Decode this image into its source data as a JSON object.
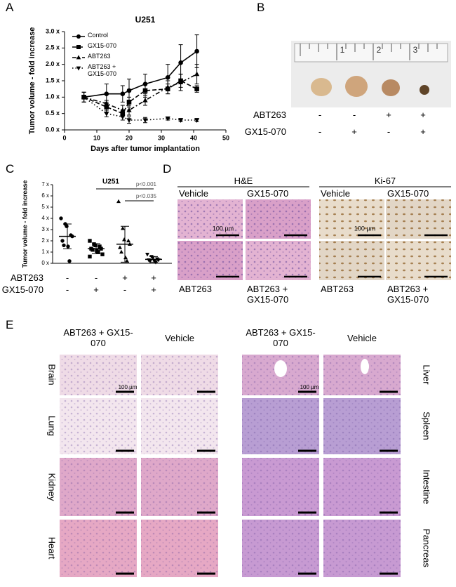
{
  "chart_data": [
    {
      "type": "line",
      "panel": "A",
      "title": "U251",
      "x_label": "Days after tumor implantation",
      "y_label": "Tumor volume - fold increase",
      "x": [
        6,
        13,
        18,
        20,
        25,
        32,
        36,
        41
      ],
      "xlim": [
        0,
        50
      ],
      "xticks": [
        0,
        10,
        20,
        30,
        40,
        50
      ],
      "ylim": [
        0,
        3
      ],
      "yticks": [
        {
          "value": 0,
          "label": "0.0 x"
        },
        {
          "value": 0.5,
          "label": "0.5 x"
        },
        {
          "value": 1,
          "label": "1.0 x"
        },
        {
          "value": 1.5,
          "label": "1.5 x"
        },
        {
          "value": 2,
          "label": "2.0 x"
        },
        {
          "value": 2.5,
          "label": "2.5 x"
        },
        {
          "value": 3,
          "label": "3.0 x"
        }
      ],
      "series": [
        {
          "name": "Control",
          "color": "#000000",
          "marker": "circle",
          "dash": "solid",
          "values": [
            1.0,
            1.1,
            1.1,
            1.2,
            1.4,
            1.6,
            2.05,
            2.4
          ],
          "errors": [
            0.15,
            0.3,
            0.25,
            0.35,
            0.3,
            0.4,
            0.55,
            0.5
          ]
        },
        {
          "name": "GX15-070",
          "color": "#000000",
          "marker": "square",
          "dash": "dashed",
          "values": [
            1.0,
            0.7,
            0.5,
            0.85,
            1.2,
            1.25,
            1.5,
            1.25
          ],
          "errors": [
            0.15,
            0.15,
            0.1,
            0.15,
            0.2,
            0.15,
            0.2,
            0.1
          ]
        },
        {
          "name": "ABT263",
          "color": "#000000",
          "marker": "triangle-up",
          "dash": "dashdot",
          "values": [
            1.0,
            0.8,
            0.6,
            0.6,
            0.9,
            1.3,
            1.45,
            1.7
          ],
          "errors": [
            0.15,
            0.1,
            0.15,
            0.15,
            0.15,
            0.2,
            0.25,
            0.3
          ]
        },
        {
          "name": "ABT263 + GX15-070",
          "color": "#000000",
          "marker": "triangle-down",
          "dash": "dotted",
          "values": [
            1.0,
            0.5,
            0.4,
            0.3,
            0.3,
            0.35,
            0.3,
            0.3
          ],
          "errors": [
            0.15,
            0.1,
            0.1,
            0.1,
            0.08,
            0.05,
            0.05,
            0.05
          ]
        }
      ]
    },
    {
      "type": "dot",
      "panel": "C",
      "title": "U251",
      "y_label": "Tumor volume - fold increase",
      "categories": [
        null,
        null,
        null,
        null
      ],
      "ylim": [
        0,
        7
      ],
      "yticks": [
        {
          "value": 0,
          "label": "0 x"
        },
        {
          "value": 1,
          "label": "1 x"
        },
        {
          "value": 2,
          "label": "2 x"
        },
        {
          "value": 3,
          "label": "3 x"
        },
        {
          "value": 4,
          "label": "4 x"
        },
        {
          "value": 5,
          "label": "5 x"
        },
        {
          "value": 6,
          "label": "6 x"
        },
        {
          "value": 7,
          "label": "7 x"
        }
      ],
      "groups": [
        {
          "marker": "circle",
          "values": [
            4.0,
            3.5,
            3.3,
            2.5,
            2.4,
            2.0,
            1.6,
            1.5,
            0.2
          ],
          "mean": 2.4,
          "sd": 1.1
        },
        {
          "marker": "square",
          "values": [
            2.0,
            1.7,
            1.6,
            1.5,
            1.3,
            1.3,
            1.2,
            1.1,
            1.0,
            0.8,
            0.6
          ],
          "mean": 1.3,
          "sd": 0.45
        },
        {
          "marker": "triangle-up",
          "values": [
            5.5,
            3.1,
            2.1,
            2.0,
            1.7,
            1.4,
            1.0,
            0.5,
            0.2
          ],
          "mean": 1.7,
          "sd": 1.6
        },
        {
          "marker": "triangle-down",
          "values": [
            0.8,
            0.6,
            0.5,
            0.4,
            0.3,
            0.3,
            0.2,
            0.2,
            0.1
          ],
          "mean": 0.35,
          "sd": 0.25
        }
      ],
      "annotations": [
        {
          "text": "p<0.001",
          "from": 1,
          "to": 3
        },
        {
          "text": "p<0.035",
          "from": 2,
          "to": 3
        }
      ],
      "treatments": [
        {
          "name": "ABT263",
          "signs": [
            "-",
            "-",
            "+",
            "+"
          ]
        },
        {
          "name": "GX15-070",
          "signs": [
            "-",
            "+",
            "-",
            "+"
          ]
        }
      ]
    }
  ],
  "panel_b": {
    "panel": "B",
    "ruler_labels": [
      "1",
      "2",
      "3"
    ],
    "treatments": [
      {
        "name": "ABT263",
        "signs": [
          "-",
          "-",
          "+",
          "+"
        ]
      },
      {
        "name": "GX15-070",
        "signs": [
          "-",
          "+",
          "-",
          "+"
        ]
      }
    ]
  },
  "panel_d": {
    "panel": "D",
    "groups": [
      {
        "title": "H&E",
        "top_labels": [
          "Vehicle",
          "GX15-070"
        ],
        "bottom_labels": [
          "ABT263",
          "ABT263 + GX15-070"
        ],
        "scale_bar": "100 µm"
      },
      {
        "title": "Ki-67",
        "top_labels": [
          "Vehicle",
          "GX15-070"
        ],
        "bottom_labels": [
          "ABT263",
          "ABT263 + GX15-070"
        ],
        "scale_bar": "100 µm"
      }
    ]
  },
  "panel_e": {
    "panel": "E",
    "columns": [
      "ABT263 + GX15-070",
      "Vehicle",
      "ABT263 + GX15-070",
      "Vehicle"
    ],
    "left_rows": [
      "Brain",
      "Lung",
      "Kidney",
      "Heart"
    ],
    "right_rows": [
      "Liver",
      "Spleen",
      "Intestine",
      "Pancreas"
    ],
    "scale_bar": "100 µm"
  }
}
